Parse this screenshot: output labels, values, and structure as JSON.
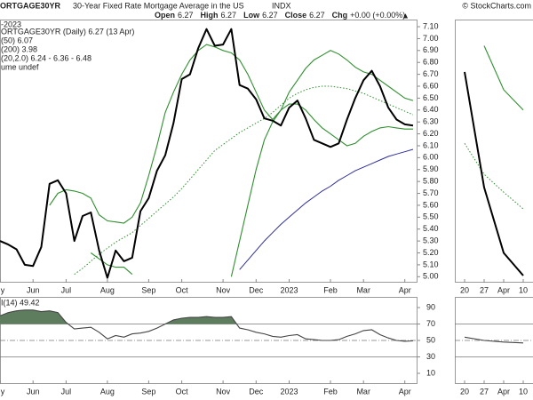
{
  "chart_data": [
    {
      "type": "line",
      "symbol": "ORTGAGE30YR",
      "title": "30-Year Fixed Rate Mortgage Average in the US",
      "exchange": "INDX",
      "source": "© StockCharts.com",
      "date_range": "-2023",
      "quote": [
        {
          "label": "Open",
          "value": 6.27
        },
        {
          "label": "High",
          "value": 6.27
        },
        {
          "label": "Low",
          "value": 6.27
        },
        {
          "label": "Close",
          "value": 6.27
        },
        {
          "label": "Chg",
          "value": "+0.00 (+0.00%)"
        }
      ],
      "categories": [
        "y",
        null,
        null,
        null,
        "Jun",
        null,
        null,
        null,
        "Jul",
        null,
        null,
        null,
        null,
        "Aug",
        null,
        null,
        null,
        null,
        "Sep",
        null,
        null,
        null,
        "Oct",
        null,
        null,
        null,
        null,
        "Nov",
        null,
        null,
        null,
        "Dec",
        null,
        null,
        null,
        "2023",
        null,
        null,
        null,
        null,
        "Feb",
        null,
        null,
        null,
        "Mar",
        null,
        null,
        null,
        null,
        "Apr",
        null
      ],
      "series": [
        {
          "name": "ORTGAGE30YR (Daily) 6.27 (13 Apr)",
          "color": "#000000",
          "width": 2,
          "values": [
            5.3,
            5.27,
            5.23,
            5.1,
            5.09,
            5.25,
            5.78,
            5.81,
            5.7,
            5.3,
            5.51,
            5.54,
            5.22,
            4.99,
            5.22,
            5.13,
            5.16,
            5.55,
            5.66,
            5.89,
            6.02,
            6.29,
            6.66,
            6.7,
            6.92,
            7.08,
            6.94,
            6.95,
            7.08,
            6.61,
            6.58,
            6.49,
            6.33,
            6.31,
            6.27,
            6.42,
            6.48,
            6.33,
            6.15,
            6.12,
            6.09,
            6.12,
            6.32,
            6.5,
            6.65,
            6.73,
            6.6,
            6.42,
            6.32,
            6.28,
            6.27
          ]
        },
        {
          "name": "(50) 6.07",
          "color": "#2e2e99",
          "width": 1,
          "values": [
            null,
            null,
            null,
            null,
            null,
            null,
            null,
            null,
            null,
            null,
            null,
            null,
            null,
            null,
            null,
            null,
            null,
            null,
            null,
            null,
            null,
            null,
            null,
            null,
            null,
            null,
            null,
            null,
            null,
            5.06,
            5.14,
            5.22,
            5.3,
            5.37,
            5.44,
            5.5,
            5.56,
            5.62,
            5.67,
            5.72,
            5.76,
            5.81,
            5.85,
            5.89,
            5.92,
            5.95,
            5.98,
            6.01,
            6.03,
            6.05,
            6.07
          ]
        },
        {
          "name": "(20,2.0) 6.24 - 6.36 - 6.48",
          "color": "#2f8f2f",
          "width": 1,
          "dash": "dotted",
          "values": [
            null,
            null,
            null,
            null,
            null,
            null,
            null,
            null,
            null,
            5.02,
            5.07,
            5.13,
            5.19,
            5.24,
            5.29,
            5.33,
            5.37,
            5.43,
            5.49,
            5.55,
            5.61,
            5.67,
            5.74,
            5.82,
            5.9,
            5.98,
            6.06,
            6.11,
            6.16,
            6.21,
            6.25,
            6.29,
            6.33,
            6.38,
            6.44,
            6.5,
            6.54,
            6.57,
            6.59,
            6.6,
            6.6,
            6.59,
            6.58,
            6.56,
            6.54,
            6.51,
            6.48,
            6.45,
            6.42,
            6.39,
            6.36
          ],
          "upper": [
            null,
            null,
            null,
            null,
            null,
            null,
            5.6,
            5.7,
            5.73,
            5.72,
            5.7,
            5.66,
            5.52,
            5.47,
            5.46,
            5.45,
            5.5,
            5.62,
            5.85,
            6.1,
            6.38,
            6.55,
            6.7,
            6.82,
            6.9,
            6.95,
            6.93,
            6.9,
            6.88,
            6.82,
            6.7,
            6.55,
            6.4,
            6.32,
            6.4,
            6.55,
            6.65,
            6.75,
            6.82,
            6.86,
            6.9,
            6.87,
            6.82,
            6.76,
            6.72,
            6.7,
            6.65,
            6.6,
            6.55,
            6.5,
            6.48
          ],
          "lower": [
            null,
            null,
            null,
            null,
            null,
            null,
            null,
            null,
            null,
            null,
            null,
            5.2,
            5.15,
            5.1,
            5.08,
            5.08,
            5.02,
            null,
            null,
            null,
            null,
            null,
            null,
            null,
            null,
            null,
            null,
            null,
            5.0,
            5.3,
            5.6,
            5.9,
            6.15,
            6.3,
            6.4,
            6.45,
            6.45,
            6.4,
            6.32,
            6.25,
            6.2,
            6.15,
            6.1,
            6.12,
            6.18,
            6.22,
            6.25,
            6.26,
            6.25,
            6.24,
            6.24
          ]
        }
      ],
      "legend_extra": [
        {
          "text": "(200) 3.98",
          "color": "#cc0000"
        },
        {
          "text": "ume undef",
          "color": "#333333"
        }
      ],
      "ylim": [
        4.95,
        7.16
      ],
      "yticks": [
        {
          "value": 5.0,
          "label": "5.00"
        },
        {
          "value": 5.1,
          "label": "5.10"
        },
        {
          "value": 5.2,
          "label": "5.20"
        },
        {
          "value": 5.3,
          "label": "5.30"
        },
        {
          "value": 5.4,
          "label": "5.40"
        },
        {
          "value": 5.5,
          "label": "5.50"
        },
        {
          "value": 5.6,
          "label": "5.60"
        },
        {
          "value": 5.7,
          "label": "5.70"
        },
        {
          "value": 5.8,
          "label": "5.80"
        },
        {
          "value": 5.9,
          "label": "5.90"
        },
        {
          "value": 6.0,
          "label": "6.00"
        },
        {
          "value": 6.1,
          "label": "6.10"
        },
        {
          "value": 6.2,
          "label": "6.20"
        },
        {
          "value": 6.3,
          "label": "6.30"
        },
        {
          "value": 6.4,
          "label": "6.40"
        },
        {
          "value": 6.5,
          "label": "6.50"
        },
        {
          "value": 6.6,
          "label": "6.60"
        },
        {
          "value": 6.7,
          "label": "6.70"
        },
        {
          "value": 6.8,
          "label": "6.80"
        },
        {
          "value": 6.9,
          "label": "6.90"
        },
        {
          "value": 7.0,
          "label": "7.00"
        },
        {
          "value": 7.1,
          "label": "7.10"
        }
      ],
      "rsi": {
        "name": "I(14) 49.42",
        "color": "#444444",
        "fill": "#5e7d5e",
        "values": [
          80,
          84,
          86,
          87,
          87,
          85,
          86,
          84,
          72,
          64,
          65,
          66,
          60,
          52,
          56,
          54,
          58,
          59,
          61,
          65,
          70,
          75,
          77,
          78,
          78,
          79,
          78,
          78,
          79,
          65,
          63,
          60,
          58,
          55,
          54,
          56,
          57,
          52,
          51,
          50,
          50,
          51,
          55,
          58,
          62,
          63,
          57,
          53,
          50,
          49,
          49.42
        ],
        "ylim": [
          -3,
          103
        ],
        "yticks": [
          90,
          70,
          50,
          30,
          10
        ],
        "bands": [
          70,
          30
        ],
        "mid": 50
      }
    },
    {
      "type": "line",
      "categories": [
        "20",
        "27",
        "Apr",
        "10"
      ],
      "series": [
        {
          "color": "#000000",
          "width": 2,
          "values": [
            6.72,
            5.75,
            5.2,
            5.01
          ]
        },
        {
          "color": "#2f8f2f",
          "width": 1,
          "dash": "dotted",
          "values": [
            6.12,
            5.86,
            5.71,
            5.57
          ],
          "upper": [
            null,
            6.94,
            6.57,
            6.4
          ]
        }
      ],
      "ylim": [
        4.95,
        7.16
      ],
      "rsi": {
        "color": "#444444",
        "values": [
          54,
          50,
          48,
          47
        ],
        "ylim": [
          -3,
          103
        ],
        "bands": [
          70,
          30
        ],
        "mid": 50
      }
    }
  ]
}
